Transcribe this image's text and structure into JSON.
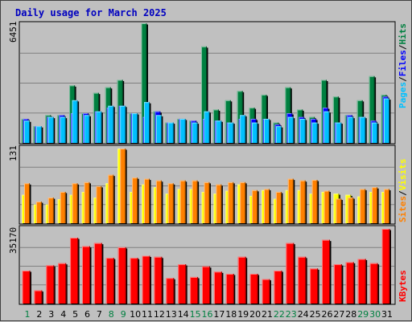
{
  "chart_data": {
    "type": "bar",
    "title": "Daily usage for March 2025",
    "days": [
      "1",
      "2",
      "3",
      "4",
      "5",
      "6",
      "7",
      "8",
      "9",
      "10",
      "11",
      "12",
      "13",
      "14",
      "15",
      "16",
      "17",
      "18",
      "19",
      "20",
      "21",
      "22",
      "23",
      "24",
      "25",
      "26",
      "27",
      "28",
      "29",
      "30",
      "31"
    ],
    "weekend_days": [
      1,
      8,
      9,
      15,
      16,
      22,
      23,
      29,
      30
    ],
    "panels": {
      "hits_files_pages": {
        "max_label": "6451",
        "ylim": [
          0,
          6451
        ],
        "series": [
          {
            "name": "Hits",
            "color": "#008040",
            "values": [
              1300,
              900,
              1500,
              1500,
              3100,
              1600,
              2700,
              3000,
              3400,
              1600,
              6451,
              1700,
              1100,
              1300,
              1200,
              5200,
              1800,
              2300,
              2800,
              1900,
              2600,
              1100,
              3000,
              1800,
              1400,
              3400,
              2500,
              1500,
              2300,
              3600,
              2600
            ]
          },
          {
            "name": "Files",
            "color": "#0000ff",
            "values": [
              1300,
              900,
              1400,
              1500,
              1600,
              1600,
              1700,
              1900,
              2000,
              1600,
              1400,
              1700,
              1100,
              1300,
              1200,
              1300,
              1200,
              1100,
              1300,
              1300,
              1300,
              1000,
              1600,
              1400,
              1300,
              1900,
              1100,
              1500,
              1400,
              1200,
              2500
            ]
          },
          {
            "name": "Pages",
            "color": "#00c0ff",
            "values": [
              1200,
              900,
              1400,
              1400,
              2300,
              1500,
              1700,
              2000,
              2000,
              1600,
              2200,
              1500,
              1100,
              1300,
              1100,
              1700,
              1200,
              1100,
              1500,
              1100,
              1300,
              900,
              1400,
              1300,
              1100,
              1700,
              1100,
              1400,
              1400,
              1100,
              2400
            ]
          }
        ],
        "side_label": [
          {
            "text": "Pages",
            "color": "#00c0ff"
          },
          {
            "text": "/",
            "color": "#000000"
          },
          {
            "text": "Files",
            "color": "#0000ff"
          },
          {
            "text": "/",
            "color": "#000000"
          },
          {
            "text": "Hits",
            "color": "#008040"
          }
        ]
      },
      "visits_sites": {
        "max_label": "131",
        "ylim": [
          0,
          131
        ],
        "series": [
          {
            "name": "Visits",
            "color": "#ffff00",
            "values": [
              50,
              33,
              33,
              42,
              50,
              55,
              45,
              70,
              131,
              55,
              68,
              63,
              52,
              60,
              60,
              55,
              52,
              57,
              68,
              48,
              58,
              43,
              58,
              58,
              52,
              55,
              52,
              50,
              47,
              55,
              55
            ]
          },
          {
            "name": "Sites",
            "color": "#ff8000",
            "values": [
              70,
              38,
              45,
              55,
              70,
              72,
              65,
              85,
              131,
              80,
              78,
              75,
              70,
              75,
              75,
              72,
              68,
              72,
              72,
              58,
              60,
              55,
              78,
              75,
              76,
              57,
              43,
              45,
              60,
              63,
              60
            ]
          }
        ],
        "side_label": [
          {
            "text": "Sites",
            "color": "#ff8000"
          },
          {
            "text": "/",
            "color": "#000000"
          },
          {
            "text": "Visits",
            "color": "#ffff00"
          }
        ]
      },
      "kbytes": {
        "max_label": "35170",
        "ylim": [
          0,
          35170
        ],
        "series": [
          {
            "name": "KBytes",
            "color": "#ff0000",
            "values": [
              15500,
              6200,
              18000,
              19000,
              31000,
              27000,
              28500,
              21500,
              26500,
              21500,
              22500,
              22000,
              12000,
              18500,
              12500,
              17500,
              15000,
              14000,
              22000,
              14000,
              11500,
              15500,
              28500,
              22000,
              16500,
              30000,
              18500,
              19500,
              21000,
              19000,
              35170
            ]
          }
        ],
        "side_label": [
          {
            "text": "KBytes",
            "color": "#ff0000"
          }
        ]
      }
    }
  }
}
